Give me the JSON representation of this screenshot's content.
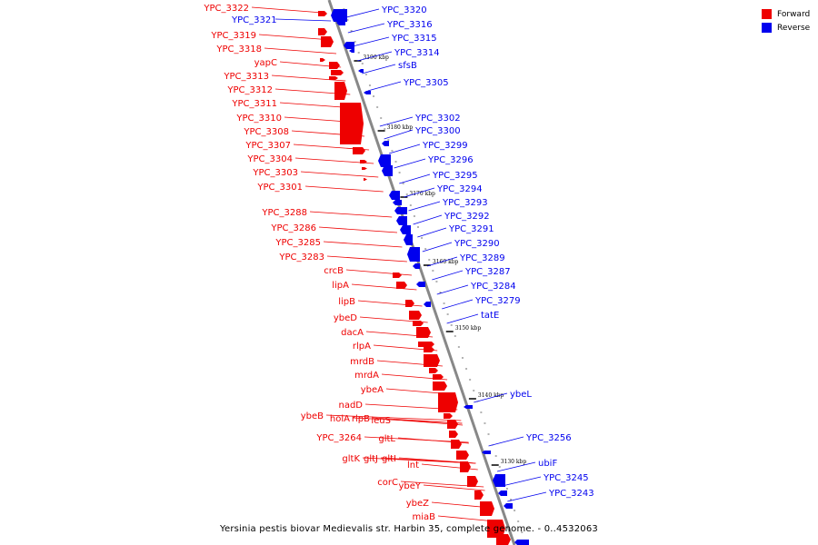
{
  "legend": [
    {
      "label": "Forward",
      "color": "#ee0000"
    },
    {
      "label": "Reverse",
      "color": "#0000ee"
    }
  ],
  "caption": "Yersinia pestis biovar Medievalis str. Harbin 35, complete genome. - 0..4532063",
  "colors": {
    "forward": "#ee0000",
    "reverse": "#0000ee",
    "backbone": "#888888",
    "tick": "#000000"
  },
  "ticks": [
    {
      "label": "3190 kbp"
    },
    {
      "label": "3180 kbp"
    },
    {
      "label": "3170 kbp"
    },
    {
      "label": "3160 kbp"
    },
    {
      "label": "3150 kbp"
    },
    {
      "label": "3140 kbp"
    },
    {
      "label": "3130 kbp"
    }
  ],
  "forward_genes": [
    "YPC_3322",
    "YPC_3319",
    "YPC_3318",
    "yapC",
    "YPC_3313",
    "YPC_3312",
    "YPC_3311",
    "YPC_3310",
    "YPC_3308",
    "YPC_3307",
    "YPC_3304",
    "YPC_3303",
    "YPC_3301",
    "YPC_3288",
    "YPC_3286",
    "YPC_3285",
    "YPC_3283",
    "crcB",
    "lipA",
    "lipB",
    "ybeD",
    "dacA",
    "rlpA",
    "mrdB",
    "mrdA",
    "ybeA",
    "nadD",
    "ybeB",
    "holA",
    "rlpB",
    "leuS",
    "YPC_3264",
    "gltL",
    "gltK",
    "gltJ",
    "gltI",
    "lnt",
    "corC",
    "ybeY",
    "ybeZ",
    "miaB"
  ],
  "reverse_genes": [
    "YPC_3321",
    "YPC_3320",
    "YPC_3316",
    "YPC_3315",
    "YPC_3314",
    "sfsB",
    "YPC_3305",
    "YPC_3302",
    "YPC_3300",
    "YPC_3299",
    "YPC_3296",
    "YPC_3295",
    "YPC_3294",
    "YPC_3293",
    "YPC_3292",
    "YPC_3291",
    "YPC_3290",
    "YPC_3289",
    "YPC_3287",
    "YPC_3284",
    "YPC_3279",
    "tatE",
    "ybeL",
    "YPC_3256",
    "ubiF",
    "YPC_3245",
    "YPC_3243"
  ]
}
